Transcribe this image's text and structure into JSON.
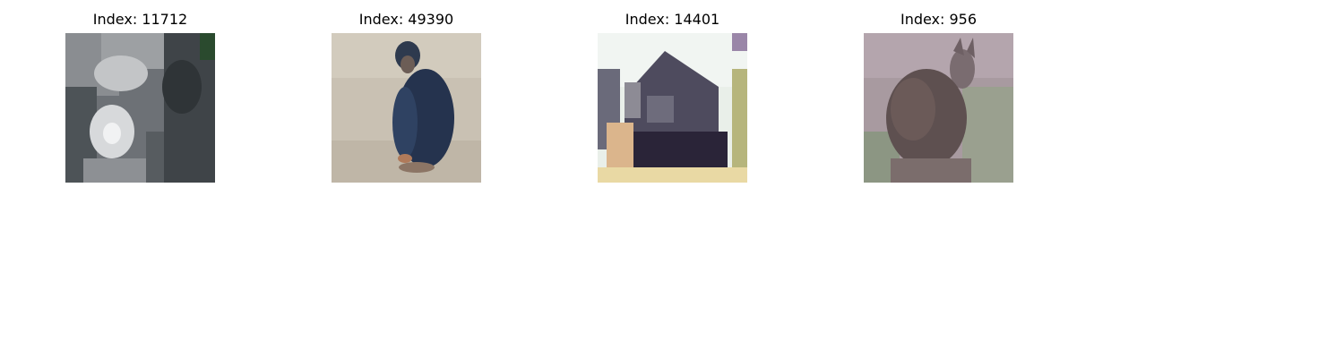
{
  "panels": [
    {
      "title": "Index: 11712",
      "image": "chimpanzee-closeup-thumbnail"
    },
    {
      "title": "Index: 49390",
      "image": "chimpanzee-sitting-thumbnail"
    },
    {
      "title": "Index: 14401",
      "image": "house-thumbnail"
    },
    {
      "title": "Index: 956",
      "image": "kangaroo-thumbnail"
    }
  ]
}
